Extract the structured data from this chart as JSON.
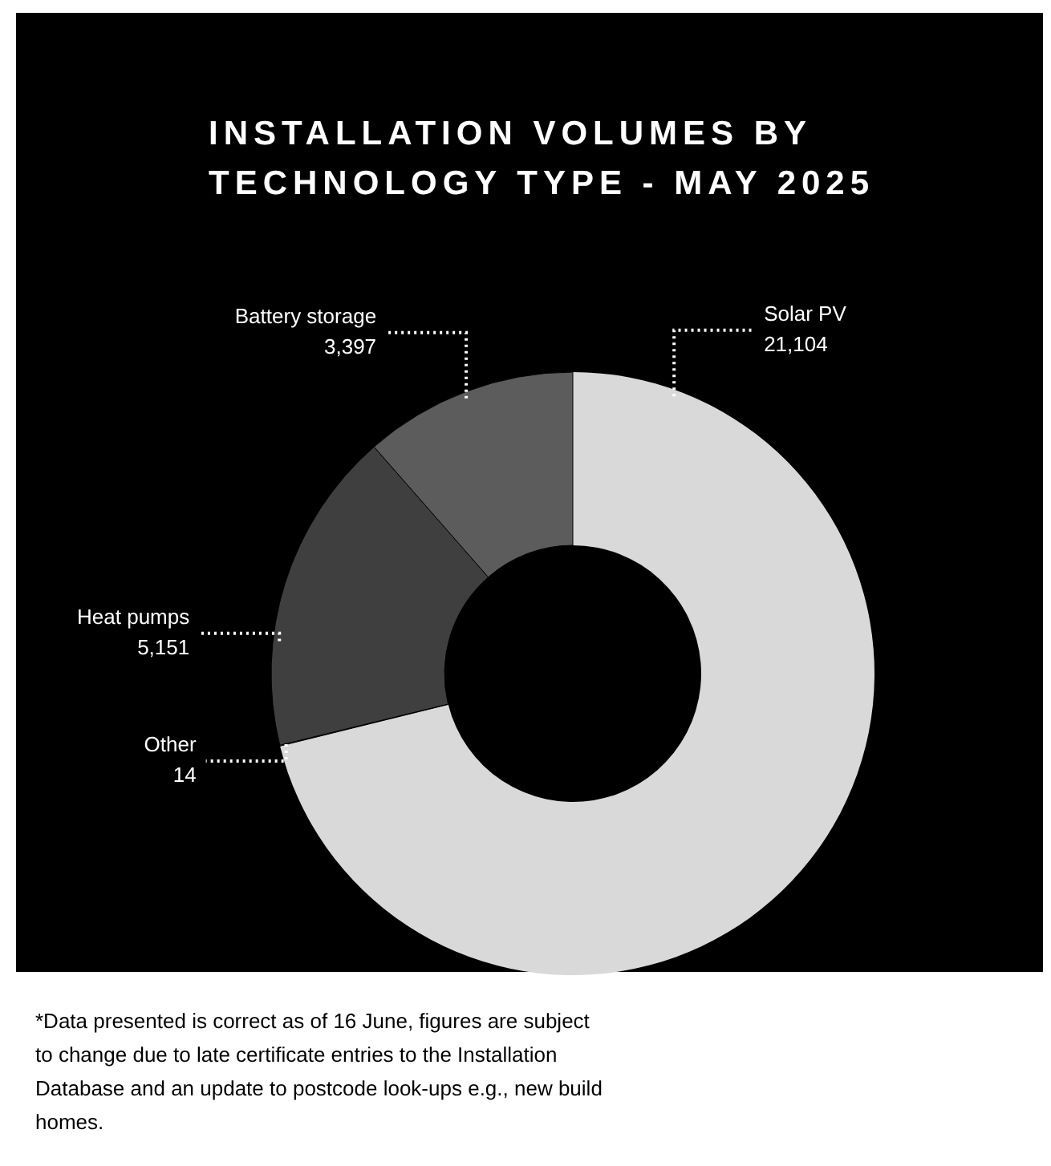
{
  "chart_data": {
    "type": "donut",
    "title": "INSTALLATION VOLUMES BY TECHNOLOGY TYPE - MAY 2025",
    "categories": [
      "Solar PV",
      "Other",
      "Heat pumps",
      "Battery storage"
    ],
    "values": [
      21104,
      14,
      5151,
      3397
    ],
    "value_labels": [
      "21,104",
      "14",
      "5,151",
      "3,397"
    ],
    "colors": [
      "#d9d9d9",
      "#8c8c8c",
      "#3f3f3f",
      "#5c5c5c"
    ],
    "annotations": [
      "*Data presented is correct as of 16 June, figures are subject to change due to late certificate entries to the Installation Database and an update to postcode look-ups e.g., new build homes."
    ]
  }
}
